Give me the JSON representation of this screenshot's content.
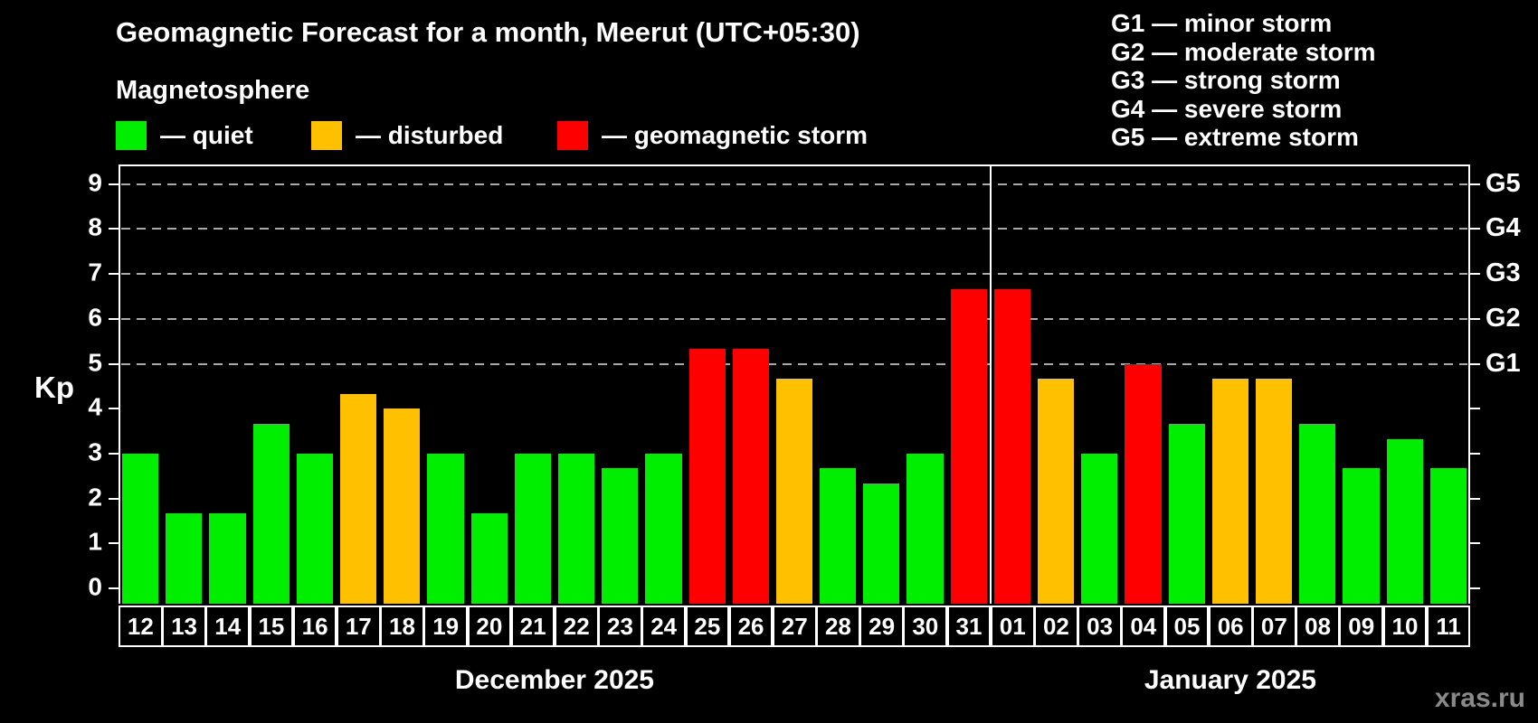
{
  "header": {
    "title": "Geomagnetic Forecast for a month, Meerut (UTC+05:30)",
    "subtitle": "Magnetosphere"
  },
  "legend": {
    "items": [
      {
        "status": "quiet",
        "label": "— quiet",
        "color": "#00ee00"
      },
      {
        "status": "disturbed",
        "label": "— disturbed",
        "color": "#ffc000"
      },
      {
        "status": "storm",
        "label": "— geomagnetic storm",
        "color": "#ff0000"
      }
    ]
  },
  "g_scale": {
    "separator": "—",
    "items": [
      {
        "code": "G1",
        "name": "minor storm",
        "kp": 5
      },
      {
        "code": "G2",
        "name": "moderate storm",
        "kp": 6
      },
      {
        "code": "G3",
        "name": "strong storm",
        "kp": 7
      },
      {
        "code": "G4",
        "name": "severe storm",
        "kp": 8
      },
      {
        "code": "G5",
        "name": "extreme storm",
        "kp": 9
      }
    ]
  },
  "axes": {
    "y_label": "Kp",
    "y_ticks": [
      0,
      1,
      2,
      3,
      4,
      5,
      6,
      7,
      8,
      9
    ],
    "right_g_labels": [
      "G1",
      "G2",
      "G3",
      "G4",
      "G5"
    ]
  },
  "months": [
    {
      "label": "December 2025",
      "days": 20
    },
    {
      "label": "January 2025",
      "days": 11
    }
  ],
  "watermark": "xras.ru",
  "colors": {
    "background": "#000000",
    "quiet": "#00ee00",
    "disturbed": "#ffc000",
    "storm": "#ff0000",
    "grid": "#aaaaaa",
    "axis": "#ffffff",
    "watermark": "#8a8a8a"
  },
  "chart_data": {
    "type": "bar",
    "title": "Geomagnetic Forecast for a month, Meerut (UTC+05:30)",
    "xlabel": "",
    "ylabel": "Kp",
    "ylim": [
      0,
      9
    ],
    "grid_levels": [
      5,
      6,
      7,
      8,
      9
    ],
    "grid_level_names": [
      "G1",
      "G2",
      "G3",
      "G4",
      "G5"
    ],
    "legend_position": "top",
    "categories": [
      "12",
      "13",
      "14",
      "15",
      "16",
      "17",
      "18",
      "19",
      "20",
      "21",
      "22",
      "23",
      "24",
      "25",
      "26",
      "27",
      "28",
      "29",
      "30",
      "31",
      "01",
      "02",
      "03",
      "04",
      "05",
      "06",
      "07",
      "08",
      "09",
      "10",
      "11"
    ],
    "values": [
      3.0,
      1.67,
      1.67,
      3.67,
      3.0,
      4.33,
      4.0,
      3.0,
      1.67,
      3.0,
      3.0,
      2.67,
      3.0,
      5.33,
      5.33,
      4.67,
      2.67,
      2.33,
      3.0,
      6.67,
      6.67,
      4.67,
      3.0,
      5.0,
      3.67,
      4.67,
      4.67,
      3.67,
      2.67,
      3.33,
      2.67
    ],
    "statuses": [
      "quiet",
      "quiet",
      "quiet",
      "quiet",
      "quiet",
      "disturbed",
      "disturbed",
      "quiet",
      "quiet",
      "quiet",
      "quiet",
      "quiet",
      "quiet",
      "storm",
      "storm",
      "disturbed",
      "quiet",
      "quiet",
      "quiet",
      "storm",
      "storm",
      "disturbed",
      "quiet",
      "storm",
      "quiet",
      "disturbed",
      "disturbed",
      "quiet",
      "quiet",
      "quiet",
      "quiet"
    ]
  }
}
